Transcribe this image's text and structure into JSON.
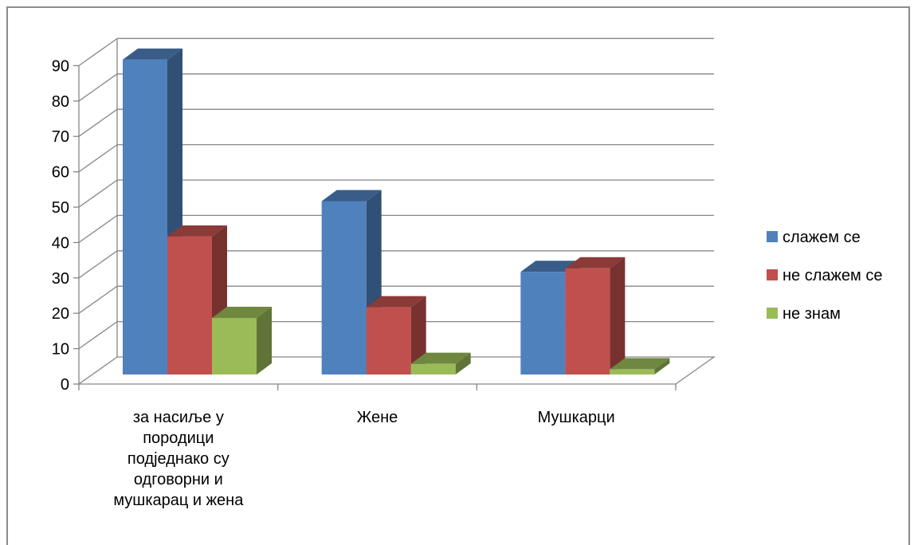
{
  "chart_data": {
    "type": "bar",
    "title": "",
    "xlabel": "",
    "ylabel": "",
    "ylim": [
      0,
      90
    ],
    "yticks": [
      0,
      10,
      20,
      30,
      40,
      50,
      60,
      70,
      80,
      90
    ],
    "grid": true,
    "legend": "right",
    "categories": [
      [
        "за насиље у",
        "породици",
        "подједнако су",
        "одговорни и",
        "мушкарац и жена"
      ],
      [
        "Жене"
      ],
      [
        "Мушкарци"
      ]
    ],
    "series": [
      {
        "name": "слажем се",
        "values": [
          89,
          49,
          29
        ],
        "color": "#4f81bd"
      },
      {
        "name": "не слажем се",
        "values": [
          39,
          19,
          30
        ],
        "color": "#c0504d"
      },
      {
        "name": "не знам",
        "values": [
          16,
          3,
          1.5
        ],
        "color": "#9bbb59"
      }
    ]
  }
}
